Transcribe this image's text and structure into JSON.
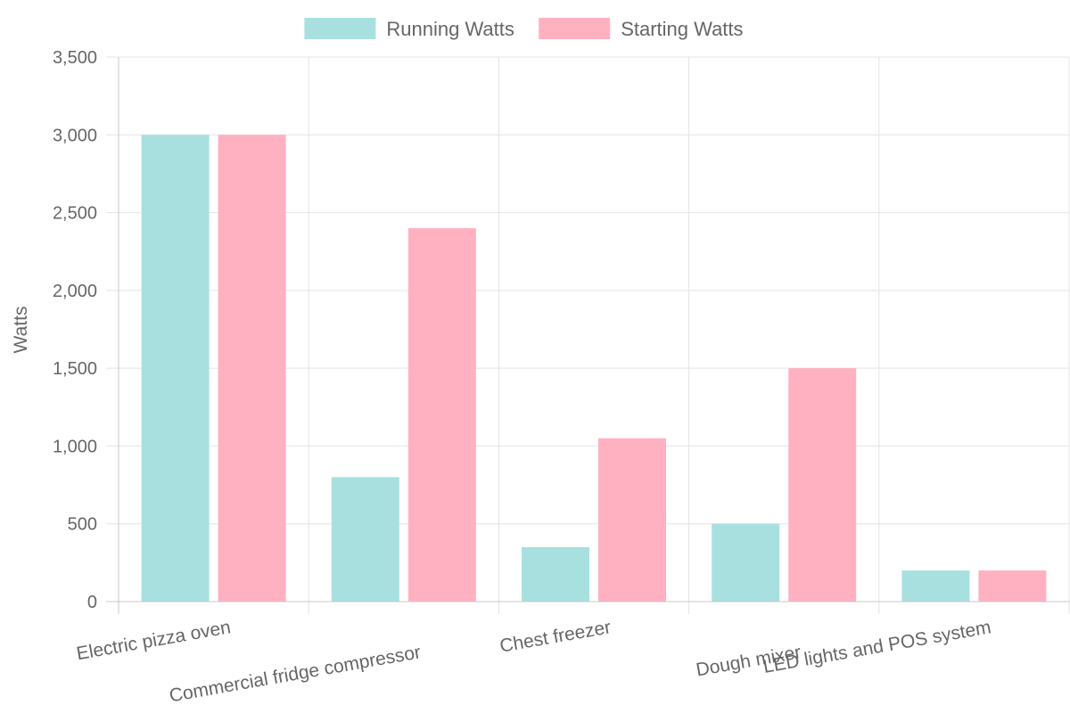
{
  "chart_data": {
    "type": "bar",
    "title": "",
    "xlabel": "",
    "ylabel": "Watts",
    "ylim": [
      0,
      3500
    ],
    "yticks": [
      0,
      500,
      1000,
      1500,
      2000,
      2500,
      3000,
      3500
    ],
    "ytick_labels": [
      "0",
      "500",
      "1,000",
      "1,500",
      "2,000",
      "2,500",
      "3,000",
      "3,500"
    ],
    "categories": [
      "Electric pizza oven",
      "Commercial fridge compressor",
      "Chest freezer",
      "Dough mixer",
      "LED lights and POS system"
    ],
    "series": [
      {
        "name": "Running Watts",
        "color": "#a8e0e0",
        "values": [
          3000,
          800,
          350,
          500,
          200
        ]
      },
      {
        "name": "Starting Watts",
        "color": "#ffb1c1",
        "values": [
          3000,
          2400,
          1050,
          1500,
          200
        ]
      }
    ],
    "grid": true,
    "legend_position": "top-center"
  }
}
